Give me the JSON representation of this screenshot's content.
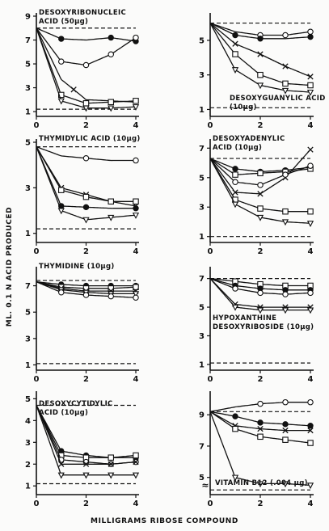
{
  "figure": {
    "ylabel": "ML. 0.1 N ACID PRODUCED",
    "xlabel": "MILLIGRAMS RIBOSE COMPOUND"
  },
  "chart_data": [
    {
      "type": "line",
      "title": "DESOXYRIBONUCLEIC ACID (50 µg)",
      "title_lines": [
        "DESOXYRIBONUCLEIC",
        "ACID (50µg)"
      ],
      "title_pos": "top-left",
      "xlim": [
        0,
        4
      ],
      "ylim": [
        0.6,
        9
      ],
      "xticks": [
        0,
        2,
        4
      ],
      "yticks": [
        1,
        3,
        5,
        7,
        9
      ],
      "hlines": [
        8.0,
        1.2
      ],
      "series": [
        {
          "marker": "filled-circle",
          "x": [
            0,
            1,
            2,
            3,
            4
          ],
          "y": [
            8.0,
            7.1,
            7.0,
            7.2,
            6.9
          ],
          "marker_at": [
            1,
            3,
            4
          ]
        },
        {
          "marker": "open-circle",
          "x": [
            0,
            1,
            2,
            3,
            4
          ],
          "y": [
            8.0,
            5.2,
            4.9,
            5.8,
            7.2
          ],
          "marker_at": [
            1,
            2,
            3,
            4
          ]
        },
        {
          "marker": "x",
          "x": [
            0,
            1,
            2,
            3,
            4
          ],
          "y": [
            8.0,
            3.7,
            2.0,
            1.9,
            1.8
          ],
          "marker_at": [
            1.5
          ]
        },
        {
          "marker": "open-square",
          "x": [
            0,
            1,
            2,
            3,
            4
          ],
          "y": [
            8.0,
            2.4,
            1.7,
            1.8,
            1.9
          ],
          "marker_at": [
            1,
            2,
            3,
            4
          ]
        },
        {
          "marker": "open-triangle",
          "x": [
            0,
            1,
            2,
            3,
            4
          ],
          "y": [
            8.0,
            1.9,
            1.3,
            1.3,
            1.4
          ],
          "marker_at": [
            1,
            2,
            3,
            4
          ]
        }
      ]
    },
    {
      "type": "line",
      "title": "DESOXYGUANYLIC ACID (10µg)",
      "title_lines": [
        "DESOXYGUANYLIC ACID",
        "(10µg)"
      ],
      "title_pos": "bottom-right",
      "xlim": [
        0,
        4
      ],
      "ylim": [
        0.6,
        6.4
      ],
      "xticks": [
        0,
        2,
        4
      ],
      "yticks": [
        1,
        3,
        5
      ],
      "hlines": [
        6.0,
        1.1
      ],
      "series": [
        {
          "marker": "open-circle",
          "x": [
            0,
            1,
            2,
            3,
            4
          ],
          "y": [
            6.0,
            5.5,
            5.3,
            5.3,
            5.5
          ],
          "marker_at": [
            2,
            3,
            4
          ]
        },
        {
          "marker": "filled-circle",
          "x": [
            0,
            1,
            2,
            3,
            4
          ],
          "y": [
            6.0,
            5.3,
            5.1,
            5.1,
            5.2
          ],
          "marker_at": [
            1,
            2,
            4
          ]
        },
        {
          "marker": "x",
          "x": [
            0,
            1,
            2,
            3,
            4
          ],
          "y": [
            6.0,
            4.8,
            4.2,
            3.5,
            2.9
          ],
          "marker_at": [
            1,
            2,
            3,
            4
          ]
        },
        {
          "marker": "open-square",
          "x": [
            0,
            1,
            2,
            3,
            4
          ],
          "y": [
            6.0,
            4.2,
            3.0,
            2.5,
            2.4
          ],
          "marker_at": [
            1,
            2,
            3,
            4
          ]
        },
        {
          "marker": "open-triangle",
          "x": [
            0,
            1,
            2,
            3,
            4
          ],
          "y": [
            6.0,
            3.3,
            2.4,
            2.1,
            2.0
          ],
          "marker_at": [
            1,
            2,
            3,
            4
          ]
        }
      ]
    },
    {
      "type": "line",
      "title": "THYMIDYLIC ACID (10 µg)",
      "title_lines": [
        "THYMIDYLIC ACID (10µg)"
      ],
      "title_pos": "top-left",
      "xlim": [
        0,
        4
      ],
      "ylim": [
        0.6,
        5
      ],
      "xticks": [
        0,
        2,
        4
      ],
      "yticks": [
        1,
        3,
        5
      ],
      "hlines": [
        4.8,
        1.2
      ],
      "series": [
        {
          "marker": "open-circle",
          "x": [
            0,
            1,
            2,
            3,
            4
          ],
          "y": [
            4.8,
            4.4,
            4.3,
            4.2,
            4.2
          ],
          "marker_at": [
            2,
            4
          ]
        },
        {
          "marker": "x",
          "x": [
            0,
            1,
            2,
            3,
            4
          ],
          "y": [
            4.8,
            3.0,
            2.7,
            2.4,
            2.2
          ],
          "marker_at": [
            1,
            2,
            3,
            4
          ]
        },
        {
          "marker": "open-square",
          "x": [
            0,
            1,
            2,
            3,
            4
          ],
          "y": [
            4.8,
            2.9,
            2.6,
            2.4,
            2.4
          ],
          "marker_at": [
            1,
            2,
            3,
            4
          ]
        },
        {
          "marker": "filled-circle",
          "x": [
            0,
            1,
            2,
            3,
            4
          ],
          "y": [
            4.8,
            2.2,
            2.15,
            2.1,
            2.1
          ],
          "marker_at": [
            1,
            2,
            4
          ]
        },
        {
          "marker": "open-triangle",
          "x": [
            0,
            1,
            2,
            3,
            4
          ],
          "y": [
            4.8,
            2.0,
            1.6,
            1.7,
            1.8
          ],
          "marker_at": [
            1,
            2,
            3,
            4
          ]
        }
      ]
    },
    {
      "type": "line",
      "title": "DESOXYADENYLIC ACID (10 µg)",
      "title_lines": [
        "DESOXYADENYLIC",
        "ACID (10µg)"
      ],
      "title_pos": "top-left",
      "xlim": [
        0,
        4
      ],
      "ylim": [
        0.6,
        7.4
      ],
      "xticks": [
        0,
        2,
        4
      ],
      "yticks": [
        1,
        3,
        5,
        7
      ],
      "hlines": [
        6.3,
        1.0
      ],
      "series": [
        {
          "marker": "filled-circle",
          "x": [
            0,
            1,
            2,
            3,
            4
          ],
          "y": [
            6.3,
            5.6,
            5.4,
            5.5,
            5.7
          ],
          "marker_at": [
            1,
            2,
            3,
            4
          ]
        },
        {
          "marker": "open-square",
          "x": [
            0,
            1,
            2,
            3,
            4
          ],
          "y": [
            6.3,
            5.2,
            5.3,
            5.4,
            5.6
          ],
          "marker_at": [
            1,
            2,
            3,
            4
          ]
        },
        {
          "marker": "x",
          "x": [
            0,
            1,
            2,
            3,
            4
          ],
          "y": [
            6.3,
            4.0,
            3.9,
            5.0,
            6.9
          ],
          "marker_at": [
            1,
            2,
            3,
            4
          ]
        },
        {
          "marker": "open-circle",
          "x": [
            0,
            1,
            2,
            3,
            4
          ],
          "y": [
            6.3,
            4.7,
            4.5,
            5.2,
            5.8
          ],
          "marker_at": [
            1,
            2,
            3,
            4
          ]
        },
        {
          "marker": "open-square-2",
          "x": [
            0,
            1,
            2,
            3,
            4
          ],
          "y": [
            6.3,
            3.5,
            2.9,
            2.7,
            2.7
          ],
          "marker_at": [
            1,
            2,
            3,
            4
          ]
        },
        {
          "marker": "open-triangle",
          "x": [
            0,
            1,
            2,
            3,
            4
          ],
          "y": [
            6.3,
            3.2,
            2.3,
            2.0,
            1.9
          ],
          "marker_at": [
            1,
            2,
            3,
            4
          ]
        }
      ]
    },
    {
      "type": "line",
      "title": "THYMIDINE (10µg)",
      "title_lines": [
        "THYMIDINE (10µg)"
      ],
      "title_pos": "top-left",
      "xlim": [
        0,
        4
      ],
      "ylim": [
        0.6,
        8.2
      ],
      "xticks": [
        0,
        2,
        4
      ],
      "yticks": [
        1,
        3,
        5,
        7
      ],
      "hlines": [
        7.4,
        1.1
      ],
      "series": [
        {
          "marker": "filled-circle",
          "x": [
            0,
            1,
            2,
            3,
            4
          ],
          "y": [
            7.3,
            7.1,
            7.0,
            7.0,
            7.0
          ],
          "marker_at": [
            1,
            2,
            3,
            4
          ]
        },
        {
          "marker": "open-square",
          "x": [
            0,
            1,
            2,
            3,
            4
          ],
          "y": [
            7.3,
            6.9,
            6.8,
            6.8,
            6.9
          ],
          "marker_at": [
            1,
            2,
            3,
            4
          ]
        },
        {
          "marker": "x",
          "x": [
            0,
            1,
            2,
            3,
            4
          ],
          "y": [
            7.3,
            6.8,
            6.6,
            6.6,
            6.6
          ],
          "marker_at": [
            1,
            2,
            3,
            4
          ]
        },
        {
          "marker": "open-triangle",
          "x": [
            0,
            1,
            2,
            3,
            4
          ],
          "y": [
            7.3,
            6.7,
            6.5,
            6.4,
            6.4
          ],
          "marker_at": [
            1,
            2,
            3,
            4
          ]
        },
        {
          "marker": "open-circle",
          "x": [
            0,
            1,
            2,
            3,
            4
          ],
          "y": [
            7.3,
            6.5,
            6.3,
            6.2,
            6.1
          ],
          "marker_at": [
            1,
            2,
            3,
            4
          ]
        }
      ]
    },
    {
      "type": "line",
      "title": "HYPOXANTHINE DESOXYRIBOSIDE (10µg)",
      "title_lines": [
        "HYPOXANTHINE",
        "DESOXYRIBOSIDE (10µg)"
      ],
      "title_pos": "middle",
      "xlim": [
        0,
        4
      ],
      "ylim": [
        0.6,
        7.6
      ],
      "xticks": [
        0,
        2,
        4
      ],
      "yticks": [
        1,
        3,
        5,
        7
      ],
      "hlines": [
        7.0,
        1.1
      ],
      "series": [
        {
          "marker": "open-square",
          "x": [
            0,
            1,
            2,
            3,
            4
          ],
          "y": [
            7.0,
            6.8,
            6.6,
            6.5,
            6.5
          ],
          "marker_at": [
            1,
            2,
            3,
            4
          ]
        },
        {
          "marker": "filled-circle",
          "x": [
            0,
            1,
            2,
            3,
            4
          ],
          "y": [
            7.0,
            6.5,
            6.3,
            6.2,
            6.2
          ],
          "marker_at": [
            1,
            2,
            3,
            4
          ]
        },
        {
          "marker": "open-circle",
          "x": [
            0,
            1,
            2,
            3,
            4
          ],
          "y": [
            7.0,
            6.3,
            6.0,
            5.9,
            6.0
          ],
          "marker_at": [
            1,
            2,
            3,
            4
          ]
        },
        {
          "marker": "x",
          "x": [
            0,
            1,
            2,
            3,
            4
          ],
          "y": [
            7.0,
            5.2,
            5.0,
            5.0,
            5.0
          ],
          "marker_at": [
            1,
            2,
            3,
            4
          ]
        },
        {
          "marker": "open-triangle",
          "x": [
            0,
            1,
            2,
            3,
            4
          ],
          "y": [
            7.0,
            5.0,
            4.8,
            4.8,
            4.8
          ],
          "marker_at": [
            1,
            2,
            3,
            4
          ]
        }
      ]
    },
    {
      "type": "line",
      "title": "DESOXYCYTIDYLIC ACID (10µg)",
      "title_lines": [
        "DESOXYCYTIDYLIC",
        "ACID (10µg)"
      ],
      "title_pos": "upper-middle",
      "xlim": [
        0,
        4
      ],
      "ylim": [
        0.6,
        5.2
      ],
      "xticks": [
        0,
        2,
        4
      ],
      "yticks": [
        1,
        2,
        3,
        4,
        5
      ],
      "hlines": [
        4.7,
        1.1
      ],
      "series": [
        {
          "marker": "filled-circle",
          "x": [
            0,
            1,
            2,
            3,
            4
          ],
          "y": [
            4.7,
            2.6,
            2.4,
            2.3,
            2.3
          ],
          "marker_at": [
            1,
            2,
            3,
            4
          ]
        },
        {
          "marker": "open-square",
          "x": [
            0,
            1,
            2,
            3,
            4
          ],
          "y": [
            4.7,
            2.4,
            2.3,
            2.3,
            2.4
          ],
          "marker_at": [
            1,
            2,
            3,
            4
          ]
        },
        {
          "marker": "open-circle",
          "x": [
            0,
            1,
            2,
            3,
            4
          ],
          "y": [
            4.7,
            2.2,
            2.1,
            2.0,
            2.1
          ],
          "marker_at": [
            1,
            2,
            3,
            4
          ]
        },
        {
          "marker": "x",
          "x": [
            0,
            1,
            2,
            3,
            4
          ],
          "y": [
            4.7,
            2.0,
            2.0,
            2.0,
            2.1
          ],
          "marker_at": [
            1,
            2,
            3,
            4
          ]
        },
        {
          "marker": "open-triangle",
          "x": [
            0,
            1,
            2,
            3,
            4
          ],
          "y": [
            4.7,
            1.5,
            1.5,
            1.5,
            1.5
          ],
          "marker_at": [
            1,
            2,
            3,
            4
          ]
        }
      ]
    },
    {
      "type": "line",
      "title": "VITAMIN B12 (.004 µg)",
      "title_lines": [
        "VITAMIN B12 (.004 µg)"
      ],
      "title_pos": "bottom-middle",
      "xlim": [
        0,
        4
      ],
      "ylim": [
        3.9,
        10.3
      ],
      "xticks": [
        0,
        2,
        4
      ],
      "yticks": [
        5,
        7,
        9
      ],
      "axis_break": "≈",
      "hlines": [
        9.2,
        4.2
      ],
      "series": [
        {
          "marker": "open-circle",
          "x": [
            0,
            1,
            2,
            3,
            4
          ],
          "y": [
            9.2,
            9.5,
            9.7,
            9.8,
            9.8
          ],
          "marker_at": [
            2,
            3,
            4
          ]
        },
        {
          "marker": "filled-circle",
          "x": [
            0,
            1,
            2,
            3,
            4
          ],
          "y": [
            9.2,
            8.9,
            8.5,
            8.4,
            8.3
          ],
          "marker_at": [
            1,
            2,
            3,
            4
          ]
        },
        {
          "marker": "x",
          "x": [
            0,
            1,
            2,
            3,
            4
          ],
          "y": [
            9.2,
            8.3,
            8.1,
            8.0,
            8.0
          ],
          "marker_at": [
            1,
            2,
            3,
            4
          ]
        },
        {
          "marker": "open-square",
          "x": [
            0,
            1,
            2,
            3,
            4
          ],
          "y": [
            9.2,
            8.1,
            7.6,
            7.4,
            7.2
          ],
          "marker_at": [
            1,
            2,
            3,
            4
          ]
        },
        {
          "marker": "open-triangle",
          "x": [
            0,
            1,
            2,
            3,
            4
          ],
          "y": [
            9.2,
            5.0,
            4.6,
            4.6,
            4.5
          ],
          "marker_at": [
            1,
            2,
            3,
            4
          ]
        }
      ]
    }
  ]
}
